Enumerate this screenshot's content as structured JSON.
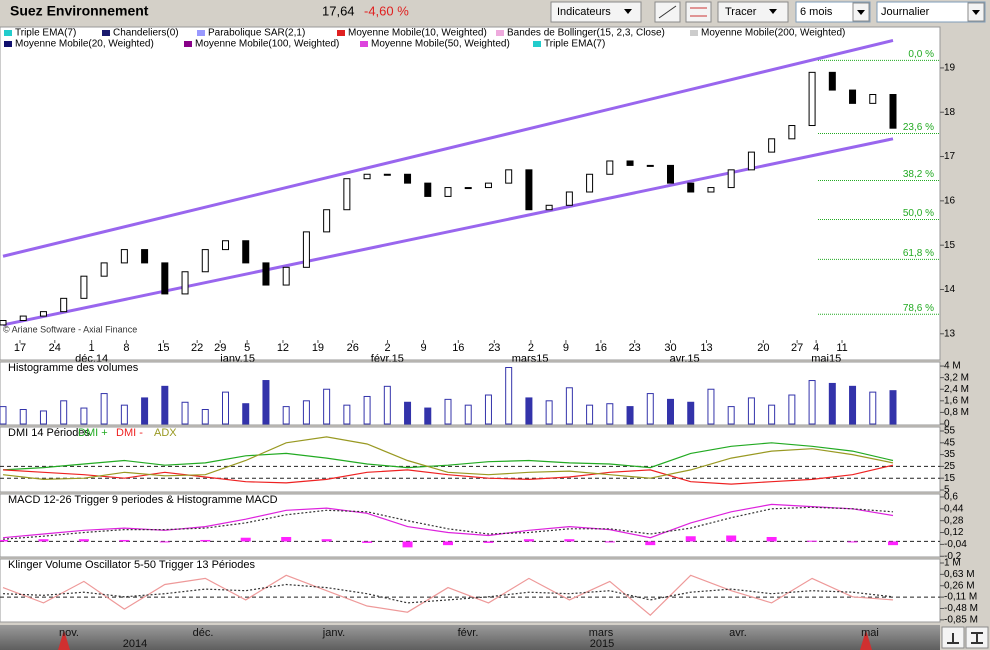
{
  "header": {
    "title": "Suez Environnement",
    "price": "17,64",
    "change": "-4,60 %"
  },
  "toolbar": {
    "indicators": "Indicateurs",
    "draw": "Tracer",
    "period": "6 mois",
    "interval": "Journalier"
  },
  "chart_data": [
    {
      "type": "candlestick",
      "watermark": "© Ariane Software - Axial Finance",
      "legend": [
        {
          "name": "Triple EMA(7)",
          "color": "#22cccc"
        },
        {
          "name": "Chandeliers(0)",
          "color": "#1a1a6e"
        },
        {
          "name": "Parabolique SAR(2,1)",
          "color": "#9999ff"
        },
        {
          "name": "Moyenne Mobile(10, Weighted)",
          "color": "#e02020"
        },
        {
          "name": "Bandes de Bollinger(15, 2,3, Close)",
          "color": "#eeaadd"
        },
        {
          "name": "Moyenne Mobile(200, Weighted)",
          "color": "#cccccc"
        },
        {
          "name": "Moyenne Mobile(20, Weighted)",
          "color": "#10106e"
        },
        {
          "name": "Moyenne Mobile(100, Weighted)",
          "color": "#880088"
        },
        {
          "name": "Moyenne Mobile(50, Weighted)",
          "color": "#dd44dd"
        },
        {
          "name": "Triple EMA(7)",
          "color": "#22cccc"
        }
      ],
      "open": [
        13.2,
        13.3,
        13.4,
        13.5,
        13.8,
        14.3,
        14.6,
        14.9,
        14.6,
        13.9,
        14.4,
        14.9,
        15.1,
        14.6,
        14.1,
        14.5,
        15.3,
        15.8,
        16.5,
        16.6,
        16.6,
        16.4,
        16.1,
        16.3,
        16.3,
        16.4,
        16.7,
        15.8,
        15.9,
        16.2,
        16.6,
        16.9,
        16.8,
        16.8,
        16.4,
        16.2,
        16.3,
        16.7,
        17.1,
        17.4,
        17.7,
        18.9,
        18.5,
        18.2,
        18.4
      ],
      "close": [
        13.3,
        13.4,
        13.5,
        13.8,
        14.3,
        14.6,
        14.9,
        14.6,
        13.9,
        14.4,
        14.9,
        15.1,
        14.6,
        14.1,
        14.5,
        15.3,
        15.8,
        16.5,
        16.6,
        16.6,
        16.4,
        16.1,
        16.3,
        16.3,
        16.4,
        16.7,
        15.8,
        15.9,
        16.2,
        16.6,
        16.9,
        16.8,
        16.8,
        16.4,
        16.2,
        16.3,
        16.7,
        17.1,
        17.4,
        17.7,
        18.9,
        18.5,
        18.2,
        18.4,
        17.64
      ],
      "up_color": "#ffffff",
      "down_color": "#000000",
      "xlim": [
        0,
        44
      ],
      "ylim": [
        12.86,
        19.63
      ],
      "yticks": [
        13,
        14,
        15,
        16,
        17,
        18,
        19
      ],
      "xticks": [
        {
          "value": 0.84,
          "label": "17"
        },
        {
          "value": 2.56,
          "label": "24"
        },
        {
          "value": 4.38,
          "label": "1"
        },
        {
          "value": 6.1,
          "label": "8"
        },
        {
          "value": 7.93,
          "label": "15"
        },
        {
          "value": 9.6,
          "label": "22"
        },
        {
          "value": 10.74,
          "label": "29"
        },
        {
          "value": 12.07,
          "label": "5"
        },
        {
          "value": 13.84,
          "label": "12"
        },
        {
          "value": 15.57,
          "label": "19"
        },
        {
          "value": 17.29,
          "label": "26"
        },
        {
          "value": 19.01,
          "label": "2"
        },
        {
          "value": 20.79,
          "label": "9"
        },
        {
          "value": 22.51,
          "label": "16"
        },
        {
          "value": 24.29,
          "label": "23"
        },
        {
          "value": 26.1,
          "label": "2"
        },
        {
          "value": 27.83,
          "label": "9"
        },
        {
          "value": 29.56,
          "label": "16"
        },
        {
          "value": 31.23,
          "label": "23"
        },
        {
          "value": 33.0,
          "label": "30"
        },
        {
          "value": 34.78,
          "label": "13"
        },
        {
          "value": 37.59,
          "label": "20"
        },
        {
          "value": 39.26,
          "label": "27"
        },
        {
          "value": 40.2,
          "label": "4"
        },
        {
          "value": 41.48,
          "label": "11"
        }
      ],
      "month_ticks": [
        {
          "value": 4.38,
          "label": "déc.14"
        },
        {
          "value": 11.6,
          "label": "janv.15"
        },
        {
          "value": 19.0,
          "label": "févr.15"
        },
        {
          "value": 26.06,
          "label": "mars15"
        },
        {
          "value": 33.7,
          "label": "avr.15"
        },
        {
          "value": 40.7,
          "label": "mai15"
        }
      ],
      "fib_color": "#22aa22",
      "fib_levels": [
        {
          "value": 19.17,
          "label": "0,0 %"
        },
        {
          "value": 17.52,
          "label": "23,6 %"
        },
        {
          "value": 16.46,
          "label": "38,2 %"
        },
        {
          "value": 15.58,
          "label": "50,0 %"
        },
        {
          "value": 14.68,
          "label": "61,8 %"
        },
        {
          "value": 13.44,
          "label": "78,6 %"
        }
      ],
      "trend_color": "#9966ee",
      "trend_lines": [
        {
          "x": [
            0,
            44
          ],
          "y": [
            14.75,
            19.62
          ]
        },
        {
          "x": [
            0,
            44
          ],
          "y": [
            13.2,
            17.4
          ]
        }
      ]
    },
    {
      "type": "bar",
      "title": "Histogramme des volumes",
      "color": "#3333aa",
      "values": [
        1.2,
        1.0,
        0.9,
        1.6,
        1.1,
        2.1,
        1.3,
        1.8,
        2.6,
        1.5,
        1.0,
        2.2,
        1.4,
        3.0,
        1.2,
        1.6,
        2.4,
        1.3,
        1.9,
        2.6,
        1.5,
        1.1,
        1.7,
        1.3,
        2.0,
        3.9,
        1.8,
        1.6,
        2.5,
        1.3,
        1.4,
        1.2,
        2.1,
        1.7,
        1.5,
        2.4,
        1.2,
        1.8,
        1.3,
        2.0,
        3.0,
        2.8,
        2.6,
        2.2,
        2.3
      ],
      "ylim": [
        -0.07,
        4.28
      ],
      "yticks": [
        0,
        {
          "value": 0.8,
          "label": "0,8 M"
        },
        {
          "value": 1.6,
          "label": "1,6 M"
        },
        {
          "value": 2.4,
          "label": "2,4 M"
        },
        {
          "value": 3.2,
          "label": "3,2 M"
        },
        {
          "value": 4,
          "label": "4 M"
        }
      ]
    },
    {
      "type": "line",
      "title": "DMI 14 Périodes",
      "series": [
        {
          "name": "DMI +",
          "color": "#22aa22",
          "values": [
            22,
            24,
            27,
            30,
            26,
            28,
            34,
            36,
            32,
            27,
            24,
            26,
            29,
            30,
            28,
            27,
            24,
            36,
            42,
            45,
            42,
            38,
            30
          ]
        },
        {
          "name": "DMI -",
          "color": "#ee2222",
          "values": [
            22,
            20,
            18,
            15,
            20,
            16,
            12,
            11,
            14,
            20,
            22,
            18,
            15,
            14,
            16,
            20,
            22,
            12,
            10,
            12,
            14,
            18,
            26
          ]
        },
        {
          "name": "ADX",
          "color": "#999922",
          "values": [
            18,
            14,
            15,
            20,
            17,
            18,
            30,
            45,
            50,
            44,
            30,
            20,
            18,
            20,
            21,
            18,
            15,
            22,
            32,
            38,
            40,
            35,
            28
          ]
        }
      ],
      "ref_lines": [
        25,
        15
      ],
      "ylim": [
        3.3,
        58.4
      ],
      "yticks": [
        5,
        15,
        25,
        35,
        45,
        55
      ]
    },
    {
      "type": "line",
      "title": "MACD 12-26   Trigger 9 periodes & Histogramme MACD",
      "series": [
        {
          "color": "#dd22dd",
          "values": [
            0.05,
            0.1,
            0.15,
            0.18,
            0.15,
            0.2,
            0.3,
            0.42,
            0.45,
            0.38,
            0.2,
            0.12,
            0.08,
            0.15,
            0.2,
            0.16,
            0.05,
            0.25,
            0.4,
            0.5,
            0.47,
            0.44,
            0.35
          ]
        },
        {
          "color": "#333333",
          "dashed": true,
          "values": [
            0.03,
            0.07,
            0.12,
            0.16,
            0.16,
            0.18,
            0.25,
            0.36,
            0.42,
            0.4,
            0.28,
            0.17,
            0.1,
            0.12,
            0.17,
            0.17,
            0.1,
            0.18,
            0.32,
            0.44,
            0.46,
            0.44,
            0.4
          ]
        }
      ],
      "histogram": {
        "color": "#ff22ff",
        "values": [
          0.02,
          0.03,
          0.03,
          0.02,
          -0.01,
          0.02,
          0.05,
          0.06,
          0.03,
          -0.02,
          -0.08,
          -0.05,
          -0.02,
          0.03,
          0.03,
          -0.01,
          -0.05,
          0.07,
          0.08,
          0.06,
          0.01,
          0,
          -0.05
        ]
      },
      "ref_lines": [
        0
      ],
      "ylim": [
        -0.21,
        0.64
      ],
      "yticks": [
        {
          "value": -0.2,
          "label": "-0,2"
        },
        {
          "value": -0.04,
          "label": "-0,04"
        },
        {
          "value": 0.12,
          "label": "0,12"
        },
        {
          "value": 0.28,
          "label": "0,28"
        },
        {
          "value": 0.44,
          "label": "0,44"
        },
        {
          "value": 0.6,
          "label": "0,6"
        }
      ]
    },
    {
      "type": "line",
      "title": "Klinger Volume Oscillator 5-50   Trigger 13 Périodes",
      "series": [
        {
          "color": "#ee9999",
          "values": [
            0.2,
            -0.3,
            0.4,
            -0.5,
            0.3,
            0.5,
            -0.2,
            0.6,
            0.1,
            -0.4,
            -0.6,
            0.2,
            -0.3,
            0.5,
            -0.2,
            0.4,
            -0.7,
            0.6,
            0.1,
            -0.3,
            0.5,
            -0.1,
            -0.2
          ]
        },
        {
          "color": "#333333",
          "dashed": true,
          "values": [
            0.0,
            -0.05,
            0.05,
            -0.1,
            0.0,
            0.15,
            0.1,
            0.3,
            0.2,
            0.0,
            -0.3,
            -0.2,
            -0.1,
            0.05,
            0.0,
            0.1,
            -0.2,
            0.05,
            0.15,
            0.0,
            0.1,
            0.05,
            -0.1
          ]
        }
      ],
      "ref_lines": [
        -0.11
      ],
      "ylim": [
        -0.92,
        1.13
      ],
      "yticks": [
        {
          "value": -0.85,
          "label": "-0,85 M"
        },
        {
          "value": -0.48,
          "label": "-0,48 M"
        },
        {
          "value": -0.11,
          "label": "-0,11 M"
        },
        {
          "value": 0.26,
          "label": "0,26 M"
        },
        {
          "value": 0.63,
          "label": "0,63 M"
        },
        {
          "value": 1,
          "label": "1 M"
        }
      ]
    }
  ],
  "navigator": {
    "months": [
      "nov.",
      "déc.",
      "janv.",
      "févr.",
      "mars",
      "avr.",
      "mai"
    ],
    "years": [
      "2014",
      "2015"
    ]
  }
}
